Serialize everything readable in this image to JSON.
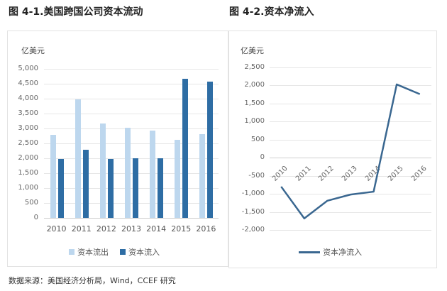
{
  "figures": {
    "left_title": "图 4-1.美国跨国公司资本流动",
    "right_title": "图 4-2.资本净流入",
    "left_unit": "亿美元",
    "right_unit": "亿美元",
    "left_yticks": [
      "5,000",
      "4,500",
      "4,000",
      "3,500",
      "3,000",
      "2,500",
      "2,000",
      "1,500",
      "1,000",
      "500",
      "0"
    ],
    "right_yticks": [
      "2,500",
      "2,000",
      "1,500",
      "1,000",
      "500",
      "0",
      "-500",
      "-1,000",
      "-1,500",
      "-2,000"
    ],
    "xticks": [
      "2010",
      "2011",
      "2012",
      "2013",
      "2014",
      "2015",
      "2016"
    ],
    "left_legend": [
      "资本流出",
      "资本流入"
    ],
    "right_legend": "资本净流入",
    "source": "数据来源：美国经济分析局，Wind，CCEF 研究",
    "colors": {
      "outflow": "#BDD7EE",
      "inflow": "#2E6DA4",
      "net_line": "#3A6790"
    }
  },
  "chart_data": [
    {
      "type": "bar",
      "title": "图 4-1.美国跨国公司资本流动",
      "xlabel": "",
      "ylabel": "亿美元",
      "categories": [
        "2010",
        "2011",
        "2012",
        "2013",
        "2014",
        "2015",
        "2016"
      ],
      "series": [
        {
          "name": "资本流出",
          "values": [
            2780,
            3980,
            3170,
            3030,
            2940,
            2620,
            2800
          ]
        },
        {
          "name": "资本流入",
          "values": [
            1980,
            2290,
            1980,
            2000,
            2000,
            4660,
            4570
          ]
        }
      ],
      "ylim": [
        0,
        5000
      ],
      "yticks_step": 500,
      "grid": true,
      "legend_position": "bottom"
    },
    {
      "type": "line",
      "title": "图 4-2.资本净流入",
      "xlabel": "",
      "ylabel": "亿美元",
      "categories": [
        "2010",
        "2011",
        "2012",
        "2013",
        "2014",
        "2015",
        "2016"
      ],
      "series": [
        {
          "name": "资本净流入",
          "values": [
            -800,
            -1680,
            -1190,
            -1020,
            -940,
            2030,
            1760
          ]
        }
      ],
      "ylim": [
        -2000,
        2500
      ],
      "yticks_step": 500,
      "grid": true,
      "legend_position": "bottom"
    }
  ]
}
